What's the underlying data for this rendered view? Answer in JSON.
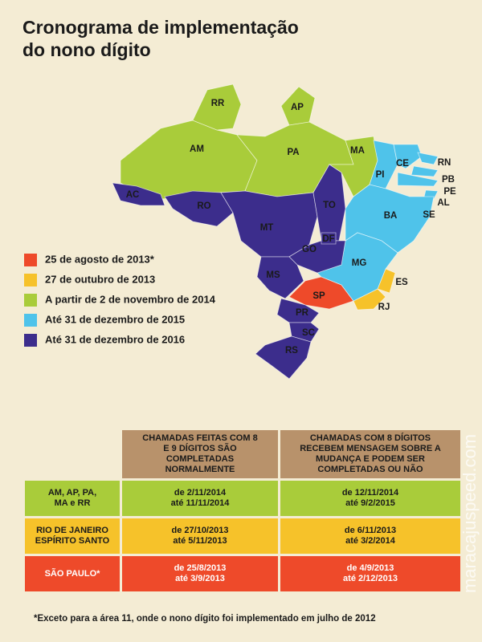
{
  "header": {
    "title_lines": [
      "Cronograma de implementação",
      "do nono dígito"
    ]
  },
  "legend": {
    "items": [
      {
        "label": "25 de agosto de 2013*",
        "color": "#ee4a2a",
        "states": [
          "SP"
        ]
      },
      {
        "label": "27 de outubro de 2013",
        "color": "#f6c22a",
        "states": [
          "RJ",
          "ES"
        ]
      },
      {
        "label": "A partir de 2 de novembro de 2014",
        "color": "#a9cc3a",
        "states": [
          "AM",
          "RR",
          "AP",
          "PA",
          "MA"
        ]
      },
      {
        "label": "Até 31 de dezembro  de 2015",
        "color": "#4fc3ea",
        "states": [
          "PI",
          "CE",
          "RN",
          "PB",
          "PE",
          "AL",
          "SE",
          "BA",
          "MG"
        ]
      },
      {
        "label": "Até 31 de dezembro de 2016",
        "color": "#3c2d8c",
        "states": [
          "AC",
          "RO",
          "MT",
          "TO",
          "GO",
          "DF",
          "MS",
          "PR",
          "SC",
          "RS"
        ]
      }
    ]
  },
  "table": {
    "header_color": "#b8926b",
    "columns": [
      "CHAMADAS FEITAS COM 8\nE 9 DÍGITOS SÃO\nCOMPLETADAS\nNORMALMENTE",
      "CHAMADAS COM 8 DÍGITOS\nRECEBEM MENSAGEM SOBRE A\nMUDANÇA E PODEM SER\nCOMPLETADAS OU NÃO"
    ],
    "rows": [
      {
        "label": "AM, AP, PA,\nMA e RR",
        "color": "#a9cc3a",
        "text_color": "#1a1a1a",
        "cells": [
          "de 2/11/2014\naté 11/11/2014",
          "de 12/11/2014\naté 9/2/2015"
        ]
      },
      {
        "label": "RIO DE JANEIRO\nESPÍRITO SANTO",
        "color": "#f6c22a",
        "text_color": "#1a1a1a",
        "cells": [
          "de 27/10/2013\naté 5/11/2013",
          "de 6/11/2013\naté 3/2/2014"
        ]
      },
      {
        "label": "SÃO PAULO*",
        "color": "#ee4a2a",
        "text_color": "#ffffff",
        "cells": [
          "de 25/8/2013\naté 3/9/2013",
          "de 4/9/2013\naté 2/12/2013"
        ]
      }
    ]
  },
  "footnote": "*Exceto para a área 11, onde o nono dígito foi implementado em julho de 2012",
  "watermark": "maracajuspeed.com"
}
